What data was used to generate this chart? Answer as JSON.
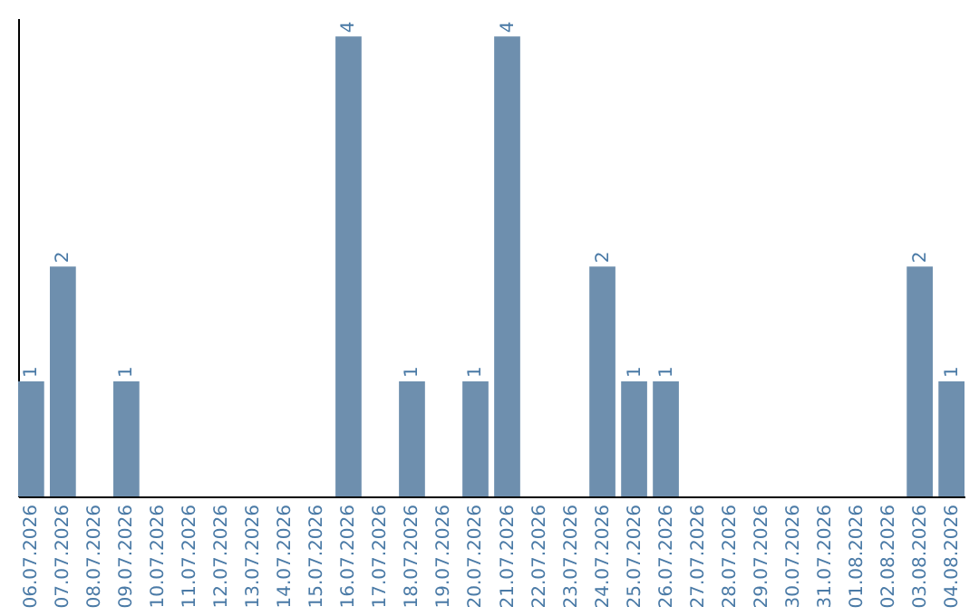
{
  "chart_data": {
    "type": "bar",
    "categories": [
      "06.07.2026",
      "07.07.2026",
      "08.07.2026",
      "09.07.2026",
      "10.07.2026",
      "11.07.2026",
      "12.07.2026",
      "13.07.2026",
      "14.07.2026",
      "15.07.2026",
      "16.07.2026",
      "17.07.2026",
      "18.07.2026",
      "19.07.2026",
      "20.07.2026",
      "21.07.2026",
      "22.07.2026",
      "23.07.2026",
      "24.07.2026",
      "25.07.2026",
      "26.07.2026",
      "27.07.2026",
      "28.07.2026",
      "29.07.2026",
      "30.07.2026",
      "31.07.2026",
      "01.08.2026",
      "02.08.2026",
      "03.08.2026",
      "04.08.2026"
    ],
    "values": [
      1,
      2,
      0,
      1,
      0,
      0,
      0,
      0,
      0,
      0,
      4,
      0,
      1,
      0,
      1,
      4,
      0,
      0,
      2,
      1,
      1,
      0,
      0,
      0,
      0,
      0,
      0,
      0,
      2,
      1
    ],
    "value_labels": [
      "1",
      "2",
      null,
      "1",
      null,
      null,
      null,
      null,
      null,
      null,
      "4",
      null,
      "1",
      null,
      "1",
      "4",
      null,
      null,
      "2",
      "1",
      "1",
      null,
      null,
      null,
      null,
      null,
      null,
      null,
      "2",
      "1"
    ],
    "color": "#6e8fae",
    "tick_labels": "x",
    "grid": false
  }
}
